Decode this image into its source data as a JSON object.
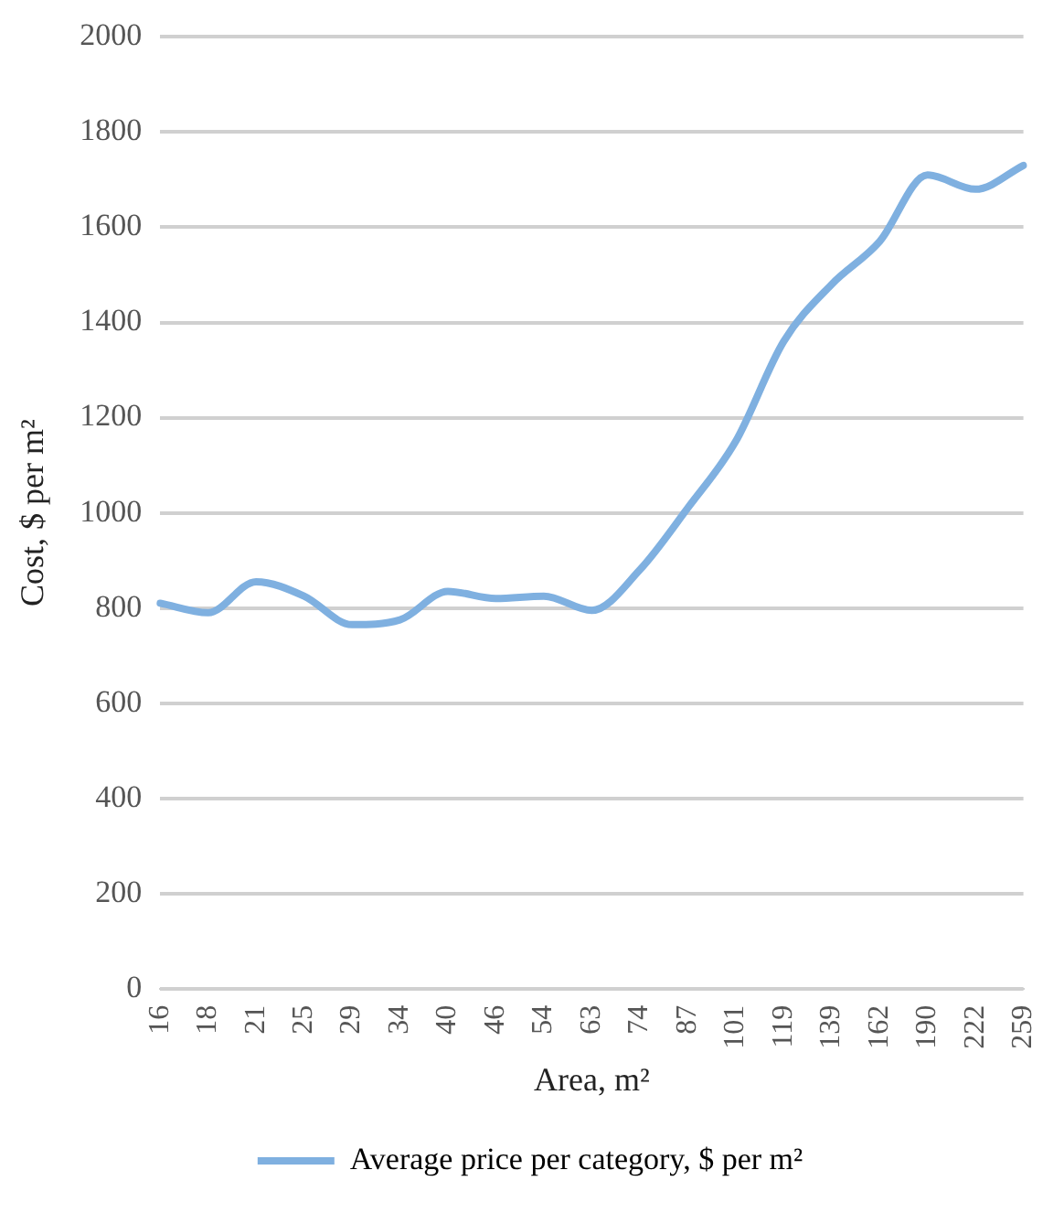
{
  "chart_data": {
    "type": "line",
    "xlabel": "Area, m²",
    "ylabel": "Cost, $ per m²",
    "categories": [
      "16",
      "18",
      "21",
      "25",
      "29",
      "34",
      "40",
      "46",
      "54",
      "63",
      "74",
      "87",
      "101",
      "119",
      "139",
      "162",
      "190",
      "222",
      "259"
    ],
    "series": [
      {
        "name": "Average price per category, $ per m²",
        "color": "#7fb0e0",
        "values": [
          810,
          790,
          855,
          825,
          765,
          775,
          835,
          820,
          825,
          795,
          880,
          1010,
          1150,
          1360,
          1480,
          1570,
          1710,
          1680,
          1730
        ]
      }
    ],
    "ylim": [
      0,
      2000
    ],
    "yticks": [
      0,
      200,
      400,
      600,
      800,
      1000,
      1200,
      1400,
      1600,
      1800,
      2000
    ],
    "grid": "y",
    "legend": "bottom",
    "marker": "none",
    "line_style": "solid"
  }
}
